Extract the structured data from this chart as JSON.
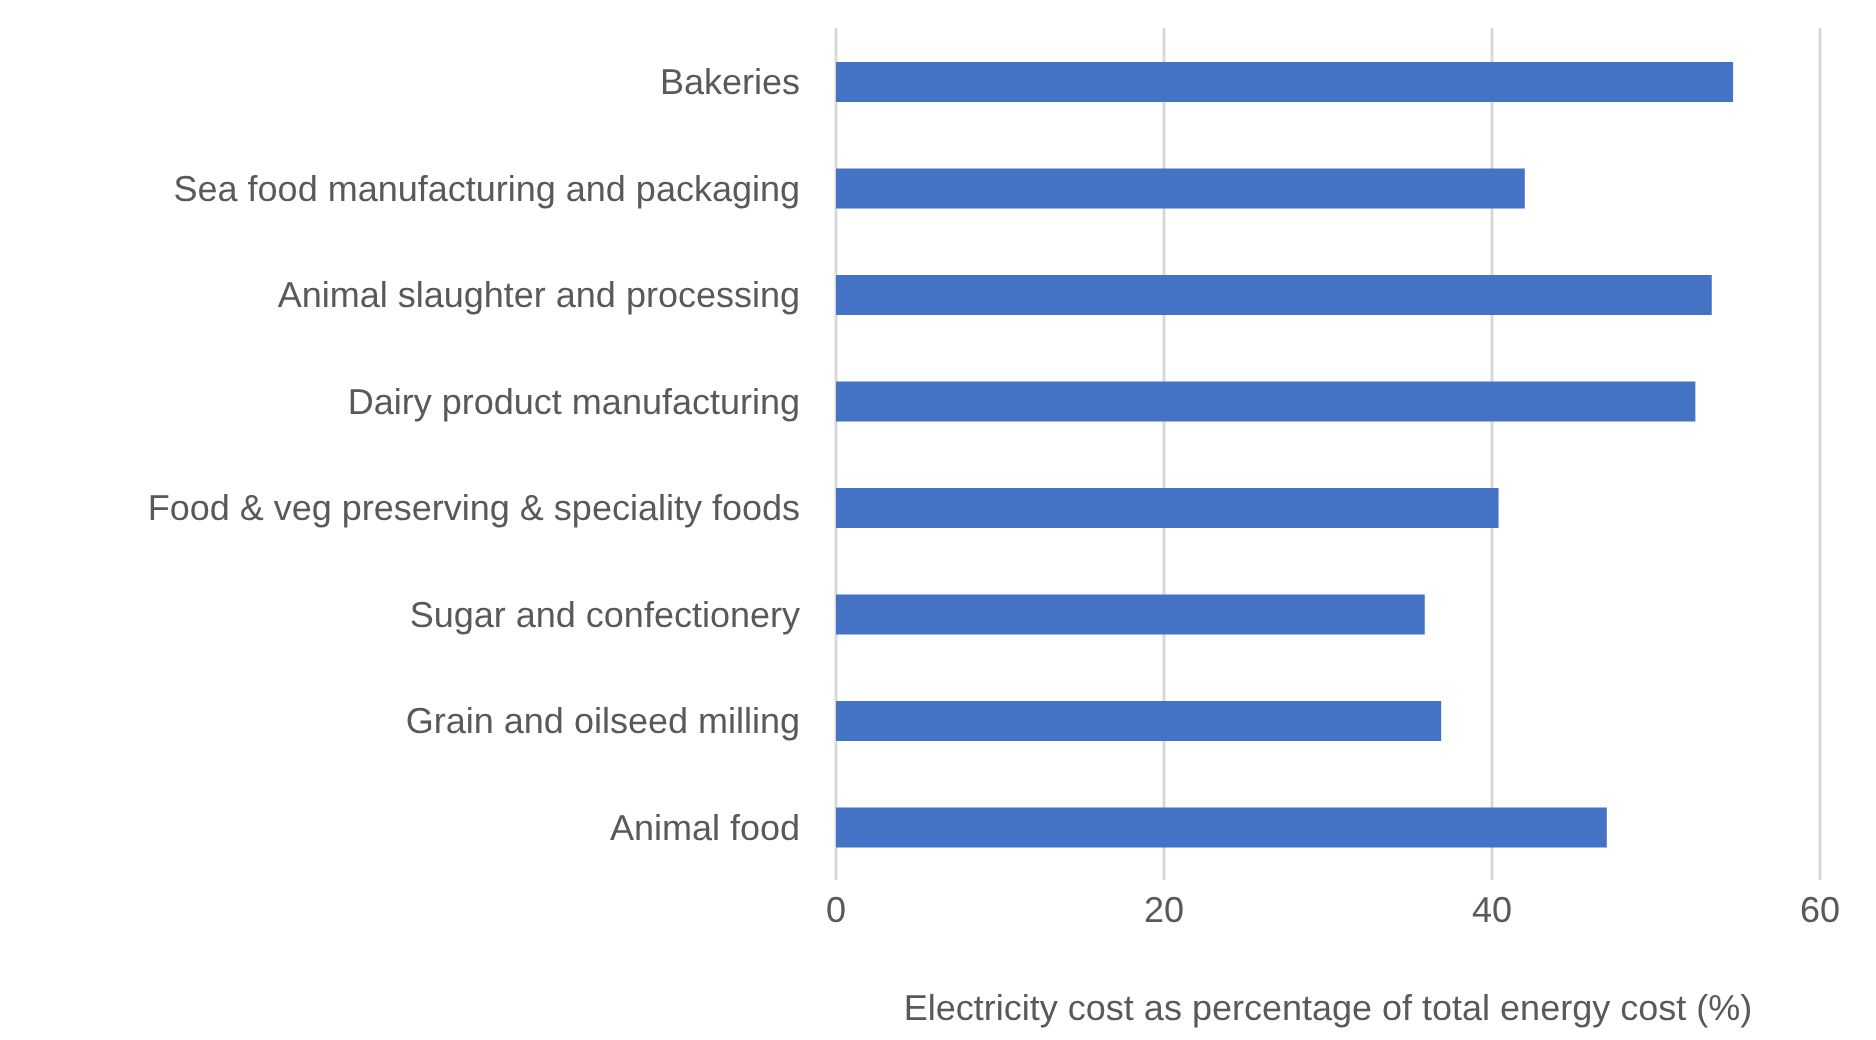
{
  "chart_data": {
    "type": "bar",
    "orientation": "horizontal",
    "xlabel": "Electricity cost as percentage of total energy cost (%)",
    "categories": [
      "Bakeries",
      "Sea food manufacturing and packaging",
      "Animal slaughter and processing",
      "Dairy product manufacturing",
      "Food & veg preserving & speciality foods",
      "Sugar and confectionery ",
      "Grain and oilseed milling",
      "Animal food"
    ],
    "values": [
      54.7,
      42.0,
      53.4,
      52.4,
      40.4,
      35.9,
      36.9,
      47.0
    ],
    "color": "#4472c4",
    "xlim": [
      0,
      60
    ],
    "xticks": [
      0,
      20,
      40,
      60
    ],
    "grid": "x"
  }
}
